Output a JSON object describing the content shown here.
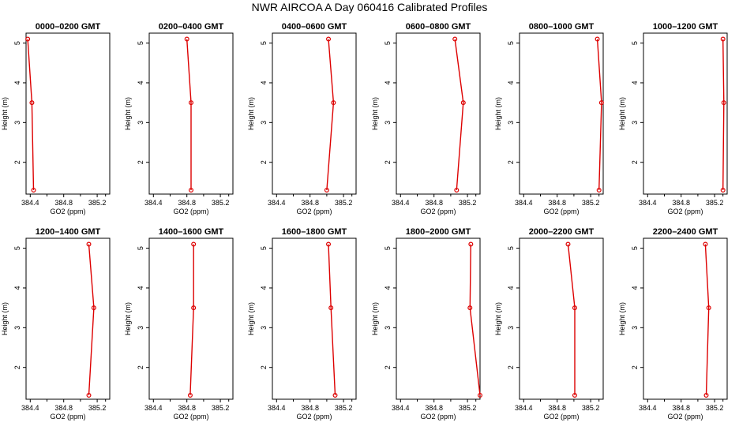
{
  "figure": {
    "title": "NWR AIRCOA A  Day 060416  Calibrated Profiles"
  },
  "colors": {
    "series": "#dd0000",
    "axes": "#000000"
  },
  "chart_data": [
    {
      "type": "line",
      "title": "0000–0200 GMT",
      "xlabel": "GO2 (ppm)",
      "ylabel": "Height (m)",
      "x_ticks": [
        "384.4",
        "384.8",
        "385.2"
      ],
      "y_ticks": [
        "2",
        "3",
        "4",
        "5"
      ],
      "xlim": [
        384.35,
        385.35
      ],
      "ylim": [
        1.2,
        5.25
      ],
      "series": [
        {
          "x": [
            384.44,
            384.42,
            384.37
          ],
          "y": [
            1.3,
            3.5,
            5.1
          ]
        }
      ]
    },
    {
      "type": "line",
      "title": "0200–0400 GMT",
      "xlabel": "GO2 (ppm)",
      "ylabel": "Height (m)",
      "x_ticks": [
        "384.4",
        "384.8",
        "385.2"
      ],
      "y_ticks": [
        "2",
        "3",
        "4",
        "5"
      ],
      "xlim": [
        384.35,
        385.35
      ],
      "ylim": [
        1.2,
        5.25
      ],
      "series": [
        {
          "x": [
            384.85,
            384.85,
            384.8
          ],
          "y": [
            1.3,
            3.5,
            5.1
          ]
        }
      ]
    },
    {
      "type": "line",
      "title": "0400–0600 GMT",
      "xlabel": "GO2 (ppm)",
      "ylabel": "Height (m)",
      "x_ticks": [
        "384.4",
        "384.8",
        "385.2"
      ],
      "y_ticks": [
        "2",
        "3",
        "4",
        "5"
      ],
      "xlim": [
        384.35,
        385.35
      ],
      "ylim": [
        1.2,
        5.25
      ],
      "series": [
        {
          "x": [
            385.0,
            385.08,
            385.02
          ],
          "y": [
            1.3,
            3.5,
            5.1
          ]
        }
      ]
    },
    {
      "type": "line",
      "title": "0600–0800 GMT",
      "xlabel": "GO2 (ppm)",
      "ylabel": "Height (m)",
      "x_ticks": [
        "384.4",
        "384.8",
        "385.2"
      ],
      "y_ticks": [
        "2",
        "3",
        "4",
        "5"
      ],
      "xlim": [
        384.35,
        385.35
      ],
      "ylim": [
        1.2,
        5.25
      ],
      "series": [
        {
          "x": [
            385.07,
            385.15,
            385.05
          ],
          "y": [
            1.3,
            3.5,
            5.1
          ]
        }
      ]
    },
    {
      "type": "line",
      "title": "0800–1000 GMT",
      "xlabel": "GO2 (ppm)",
      "ylabel": "Height (m)",
      "x_ticks": [
        "384.4",
        "384.8",
        "385.2"
      ],
      "y_ticks": [
        "2",
        "3",
        "4",
        "5"
      ],
      "xlim": [
        384.35,
        385.35
      ],
      "ylim": [
        1.2,
        5.25
      ],
      "series": [
        {
          "x": [
            385.3,
            385.33,
            385.28
          ],
          "y": [
            1.3,
            3.5,
            5.1
          ]
        }
      ]
    },
    {
      "type": "line",
      "title": "1000–1200 GMT",
      "xlabel": "GO2 (ppm)",
      "ylabel": "Height (m)",
      "x_ticks": [
        "384.4",
        "384.8",
        "385.2"
      ],
      "y_ticks": [
        "2",
        "3",
        "4",
        "5"
      ],
      "xlim": [
        384.35,
        385.35
      ],
      "ylim": [
        1.2,
        5.25
      ],
      "series": [
        {
          "x": [
            385.3,
            385.31,
            385.3
          ],
          "y": [
            1.3,
            3.5,
            5.1
          ]
        }
      ]
    },
    {
      "type": "line",
      "title": "1200–1400 GMT",
      "xlabel": "GO2 (ppm)",
      "ylabel": "Height (m)",
      "x_ticks": [
        "384.4",
        "384.8",
        "385.2"
      ],
      "y_ticks": [
        "2",
        "3",
        "4",
        "5"
      ],
      "xlim": [
        384.35,
        385.35
      ],
      "ylim": [
        1.2,
        5.25
      ],
      "series": [
        {
          "x": [
            385.1,
            385.16,
            385.1
          ],
          "y": [
            1.3,
            3.5,
            5.1
          ]
        }
      ]
    },
    {
      "type": "line",
      "title": "1400–1600 GMT",
      "xlabel": "GO2 (ppm)",
      "ylabel": "Height (m)",
      "x_ticks": [
        "384.4",
        "384.8",
        "385.2"
      ],
      "y_ticks": [
        "2",
        "3",
        "4",
        "5"
      ],
      "xlim": [
        384.35,
        385.35
      ],
      "ylim": [
        1.2,
        5.25
      ],
      "series": [
        {
          "x": [
            384.84,
            384.88,
            384.88
          ],
          "y": [
            1.3,
            3.5,
            5.1
          ]
        }
      ]
    },
    {
      "type": "line",
      "title": "1600–1800 GMT",
      "xlabel": "GO2 (ppm)",
      "ylabel": "Height (m)",
      "x_ticks": [
        "384.4",
        "384.8",
        "385.2"
      ],
      "y_ticks": [
        "2",
        "3",
        "4",
        "5"
      ],
      "xlim": [
        384.35,
        385.35
      ],
      "ylim": [
        1.2,
        5.25
      ],
      "series": [
        {
          "x": [
            385.1,
            385.05,
            385.02
          ],
          "y": [
            1.3,
            3.5,
            5.1
          ]
        }
      ]
    },
    {
      "type": "line",
      "title": "1800–2000 GMT",
      "xlabel": "GO2 (ppm)",
      "ylabel": "Height (m)",
      "x_ticks": [
        "384.4",
        "384.8",
        "385.2"
      ],
      "y_ticks": [
        "2",
        "3",
        "4",
        "5"
      ],
      "xlim": [
        384.35,
        385.35
      ],
      "ylim": [
        1.2,
        5.25
      ],
      "series": [
        {
          "x": [
            385.35,
            385.23,
            385.24
          ],
          "y": [
            1.3,
            3.5,
            5.1
          ]
        }
      ]
    },
    {
      "type": "line",
      "title": "2000–2200 GMT",
      "xlabel": "GO2 (ppm)",
      "ylabel": "Height (m)",
      "x_ticks": [
        "384.4",
        "384.8",
        "385.2"
      ],
      "y_ticks": [
        "2",
        "3",
        "4",
        "5"
      ],
      "xlim": [
        384.35,
        385.35
      ],
      "ylim": [
        1.2,
        5.25
      ],
      "series": [
        {
          "x": [
            385.01,
            385.01,
            384.93
          ],
          "y": [
            1.3,
            3.5,
            5.1
          ]
        }
      ]
    },
    {
      "type": "line",
      "title": "2200–2400 GMT",
      "xlabel": "GO2 (ppm)",
      "ylabel": "Height (m)",
      "x_ticks": [
        "384.4",
        "384.8",
        "385.2"
      ],
      "y_ticks": [
        "2",
        "3",
        "4",
        "5"
      ],
      "xlim": [
        384.35,
        385.35
      ],
      "ylim": [
        1.2,
        5.25
      ],
      "series": [
        {
          "x": [
            385.1,
            385.13,
            385.09
          ],
          "y": [
            1.3,
            3.5,
            5.1
          ]
        }
      ]
    }
  ]
}
